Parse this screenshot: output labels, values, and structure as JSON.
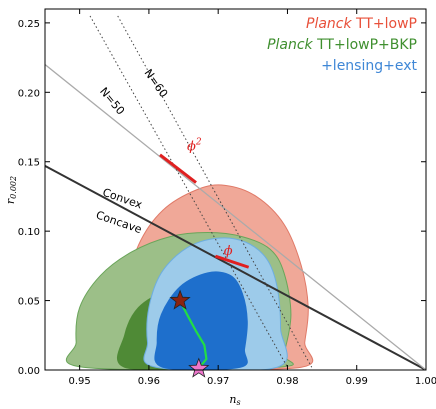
{
  "chart_data": {
    "type": "scatter",
    "xlabel": "n",
    "xlabel_sub": "s",
    "ylabel": "r",
    "ylabel_sub": "0.002",
    "xlim": [
      0.945,
      1.0
    ],
    "ylim": [
      0.0,
      0.26
    ],
    "xticks": [
      0.95,
      0.96,
      0.97,
      0.98,
      0.99,
      1.0
    ],
    "xtick_labels": [
      "0.95",
      "0.96",
      "0.97",
      "0.98",
      "0.99",
      "1.00"
    ],
    "yticks": [
      0.0,
      0.05,
      0.1,
      0.15,
      0.2,
      0.25
    ],
    "ytick_labels": [
      "0.00",
      "0.05",
      "0.10",
      "0.15",
      "0.20",
      "0.25"
    ],
    "legend_placement": "top-right",
    "legend": [
      {
        "italic": "Planck",
        "text": " TT+lowP",
        "color": "#e8503a"
      },
      {
        "italic": "Planck",
        "text": " TT+lowP+BKP",
        "color": "#3f8f2f"
      },
      {
        "italic": "",
        "text": "+lensing+ext",
        "color": "#3f87d6"
      }
    ],
    "contours": [
      {
        "name": "red-outer",
        "fill": "#f0a898",
        "stroke": "#e07a68",
        "points": [
          [
            0.9615,
            0.005
          ],
          [
            0.958,
            0.03
          ],
          [
            0.957,
            0.06
          ],
          [
            0.9585,
            0.09
          ],
          [
            0.962,
            0.115
          ],
          [
            0.967,
            0.13
          ],
          [
            0.971,
            0.133
          ],
          [
            0.9755,
            0.125
          ],
          [
            0.9795,
            0.105
          ],
          [
            0.982,
            0.075
          ],
          [
            0.983,
            0.045
          ],
          [
            0.9825,
            0.02
          ],
          [
            0.982,
            0.002
          ],
          [
            0.9615,
            0.002
          ]
        ]
      },
      {
        "name": "green-outer",
        "fill": "#9cbf88",
        "stroke": "#6aa55a",
        "points": [
          [
            0.9505,
            0.002
          ],
          [
            0.9495,
            0.02
          ],
          [
            0.95,
            0.045
          ],
          [
            0.953,
            0.068
          ],
          [
            0.9575,
            0.085
          ],
          [
            0.963,
            0.096
          ],
          [
            0.9685,
            0.099
          ],
          [
            0.9735,
            0.096
          ],
          [
            0.9775,
            0.087
          ],
          [
            0.9795,
            0.07
          ],
          [
            0.9805,
            0.04
          ],
          [
            0.9795,
            0.012
          ],
          [
            0.9785,
            0.002
          ]
        ]
      },
      {
        "name": "red-inner",
        "fill": "#e8846e",
        "stroke": "#e8846e",
        "points": [
          [
            0.962,
            0.002
          ],
          [
            0.961,
            0.02
          ],
          [
            0.9615,
            0.04
          ],
          [
            0.9635,
            0.06
          ],
          [
            0.9665,
            0.075
          ],
          [
            0.9695,
            0.078
          ],
          [
            0.9725,
            0.072
          ],
          [
            0.9745,
            0.055
          ],
          [
            0.975,
            0.035
          ],
          [
            0.9745,
            0.015
          ],
          [
            0.974,
            0.002
          ]
        ]
      },
      {
        "name": "green-inner",
        "fill": "#4f8a36",
        "stroke": "#4f8a36",
        "points": [
          [
            0.9565,
            0.002
          ],
          [
            0.9565,
            0.025
          ],
          [
            0.9585,
            0.045
          ],
          [
            0.9625,
            0.057
          ],
          [
            0.966,
            0.058
          ],
          [
            0.969,
            0.05
          ],
          [
            0.9705,
            0.03
          ],
          [
            0.97,
            0.01
          ],
          [
            0.9695,
            0.002
          ]
        ]
      },
      {
        "name": "blue-outer",
        "fill": "#9dcbea",
        "stroke": "#6eaee0",
        "points": [
          [
            0.961,
            0.002
          ],
          [
            0.9598,
            0.02
          ],
          [
            0.96,
            0.045
          ],
          [
            0.9618,
            0.07
          ],
          [
            0.9655,
            0.088
          ],
          [
            0.97,
            0.095
          ],
          [
            0.974,
            0.092
          ],
          [
            0.977,
            0.08
          ],
          [
            0.9785,
            0.06
          ],
          [
            0.979,
            0.03
          ],
          [
            0.9785,
            0.002
          ]
        ]
      },
      {
        "name": "blue-inner",
        "fill": "#1e6fcc",
        "stroke": "#1e6fcc",
        "points": [
          [
            0.962,
            0.002
          ],
          [
            0.9612,
            0.02
          ],
          [
            0.9618,
            0.04
          ],
          [
            0.9645,
            0.06
          ],
          [
            0.9685,
            0.07
          ],
          [
            0.9718,
            0.068
          ],
          [
            0.9735,
            0.055
          ],
          [
            0.9742,
            0.035
          ],
          [
            0.9738,
            0.015
          ],
          [
            0.9732,
            0.002
          ]
        ]
      }
    ],
    "lines": [
      {
        "name": "convex-concave-line",
        "color": "#333333",
        "width": 2.0,
        "dash": "",
        "points": [
          [
            0.945,
            0.147
          ],
          [
            1.0,
            0.0
          ]
        ]
      },
      {
        "name": "phi-squared-line",
        "color": "#aaaaaa",
        "width": 1.3,
        "dash": "",
        "points": [
          [
            0.945,
            0.22
          ],
          [
            1.0,
            0.0
          ]
        ]
      },
      {
        "name": "n50-line",
        "color": "#444444",
        "width": 1.0,
        "dash": "1.5,2.5",
        "points": [
          [
            0.9515,
            0.255
          ],
          [
            0.98,
            0.002
          ]
        ]
      },
      {
        "name": "n60-line",
        "color": "#444444",
        "width": 1.0,
        "dash": "1.5,2.5",
        "points": [
          [
            0.9555,
            0.255
          ],
          [
            0.9835,
            0.002
          ]
        ]
      }
    ],
    "red_segments": [
      {
        "name": "phi-squared-segment",
        "points": [
          [
            0.9616,
            0.155
          ],
          [
            0.9668,
            0.135
          ]
        ]
      },
      {
        "name": "phi-segment",
        "points": [
          [
            0.9696,
            0.082
          ],
          [
            0.9744,
            0.074
          ]
        ]
      }
    ],
    "green_curve": [
      [
        0.9645,
        0.05
      ],
      [
        0.9655,
        0.04
      ],
      [
        0.9668,
        0.028
      ],
      [
        0.968,
        0.018
      ],
      [
        0.9683,
        0.008
      ],
      [
        0.9672,
        0.001
      ]
    ],
    "markers": [
      {
        "name": "star-brown",
        "x": 0.9645,
        "y": 0.05,
        "fill": "#8b2210",
        "stroke": "#222222"
      },
      {
        "name": "star-pink",
        "x": 0.9672,
        "y": 0.001,
        "fill": "#ee77cc",
        "stroke": "#222222"
      }
    ],
    "annotations": [
      {
        "name": "label-n60",
        "text": "N=60",
        "x": 0.9606,
        "y": 0.205,
        "angle": 55
      },
      {
        "name": "label-n50",
        "text": "N=50",
        "x": 0.9543,
        "y": 0.192,
        "angle": 50
      },
      {
        "name": "label-convex",
        "text": "Convex",
        "x": 0.956,
        "y": 0.121,
        "angle": 19
      },
      {
        "name": "label-concave",
        "text": "Concave",
        "x": 0.9555,
        "y": 0.104,
        "angle": 19
      }
    ],
    "phi_labels": [
      {
        "name": "label-phi-squared",
        "text": "ϕ",
        "sup": "2",
        "x": 0.9655,
        "y": 0.158
      },
      {
        "name": "label-phi",
        "text": "ϕ",
        "sup": "",
        "x": 0.9708,
        "y": 0.083
      }
    ],
    "phi_color": "#e02020"
  }
}
